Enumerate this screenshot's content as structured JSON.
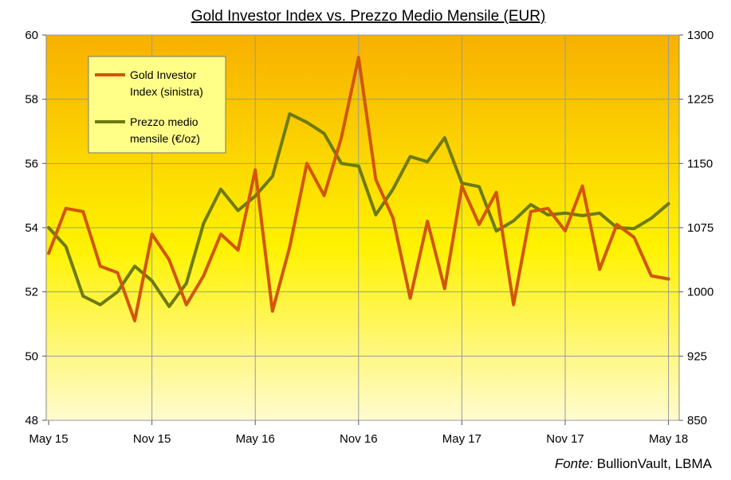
{
  "chart_data": {
    "type": "line",
    "title": "Gold Investor  Index vs. Prezzo Medio Mensile (EUR)",
    "x_ticks": [
      "May 15",
      "Nov 15",
      "May 16",
      "Nov 16",
      "May 17",
      "Nov 17",
      "May 18"
    ],
    "y_left": {
      "min": 48,
      "max": 60,
      "ticks": [
        "48",
        "50",
        "52",
        "54",
        "56",
        "58",
        "60"
      ]
    },
    "y_right": {
      "min": 850,
      "max": 1300,
      "ticks": [
        "850",
        "925",
        "1000",
        "1075",
        "1150",
        "1225",
        "1300"
      ]
    },
    "grid": true,
    "legend_position": "top-left",
    "months": [
      "2015-05",
      "2015-06",
      "2015-07",
      "2015-08",
      "2015-09",
      "2015-10",
      "2015-11",
      "2015-12",
      "2016-01",
      "2016-02",
      "2016-03",
      "2016-04",
      "2016-05",
      "2016-06",
      "2016-07",
      "2016-08",
      "2016-09",
      "2016-10",
      "2016-11",
      "2016-12",
      "2017-01",
      "2017-02",
      "2017-03",
      "2017-04",
      "2017-05",
      "2017-06",
      "2017-07",
      "2017-08",
      "2017-09",
      "2017-10",
      "2017-11",
      "2017-12",
      "2018-01",
      "2018-02",
      "2018-03",
      "2018-04",
      "2018-05"
    ],
    "series": [
      {
        "name": "Gold Investor Index (sinistra)",
        "axis": "left",
        "color": "#d2550a",
        "values": [
          53.2,
          54.6,
          54.5,
          52.8,
          52.6,
          51.1,
          53.8,
          53.0,
          51.6,
          52.5,
          53.8,
          53.3,
          55.8,
          51.4,
          53.4,
          56.0,
          55.0,
          56.8,
          59.3,
          55.5,
          54.3,
          51.8,
          54.2,
          52.1,
          55.3,
          54.1,
          55.1,
          51.6,
          54.5,
          54.6,
          53.9,
          55.3,
          52.7,
          54.1,
          53.7,
          52.5,
          52.4
        ]
      },
      {
        "name": "Prezzo medio mensile  (€/oz)",
        "axis": "right",
        "color": "#6e7a10",
        "values": [
          1075,
          1053,
          995,
          985,
          1000,
          1030,
          1013,
          983,
          1010,
          1080,
          1120,
          1095,
          1112,
          1135,
          1208,
          1198,
          1185,
          1150,
          1147,
          1090,
          1120,
          1158,
          1152,
          1180,
          1127,
          1123,
          1071,
          1083,
          1102,
          1090,
          1092,
          1089,
          1092,
          1075,
          1074,
          1086,
          1103
        ]
      }
    ]
  },
  "source": {
    "label": "Fonte:",
    "text": " BullionVault, LBMA"
  }
}
